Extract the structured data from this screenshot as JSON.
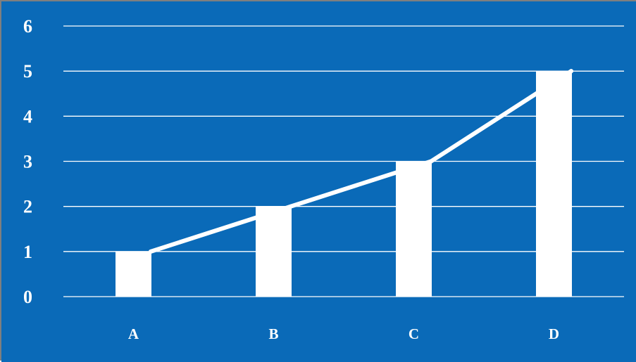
{
  "chart_data": {
    "type": "bar",
    "categories": [
      "A",
      "B",
      "C",
      "D"
    ],
    "values": [
      1,
      2,
      3,
      5
    ],
    "overlay_line": {
      "values": [
        1,
        2,
        3,
        5
      ]
    },
    "title": "",
    "xlabel": "",
    "ylabel": "",
    "ylim": [
      0,
      6
    ],
    "yticks": [
      "0",
      "1",
      "2",
      "3",
      "4",
      "5",
      "6"
    ],
    "grid": true,
    "legend": "none"
  },
  "colors": {
    "background": "#0a6ab8",
    "bar": "#ffffff",
    "line": "#ffffff",
    "grid": "#ffffff",
    "border": "#7f7f7f"
  }
}
